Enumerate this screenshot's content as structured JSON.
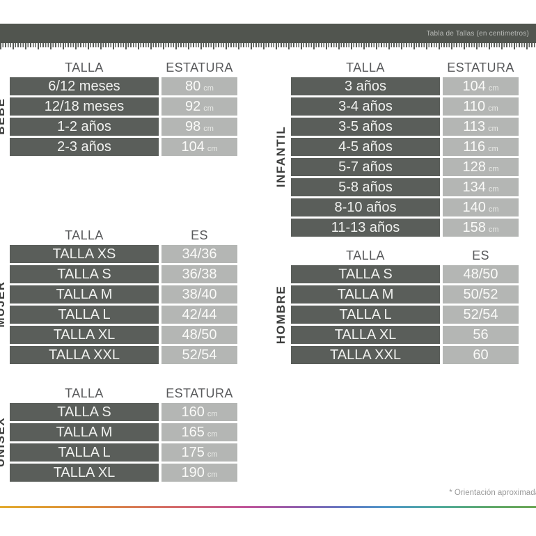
{
  "header": {
    "title": "Tabla de Tallas (en centimetros)"
  },
  "footer": {
    "note": "* Orientación aproximada"
  },
  "colors": {
    "header_bar": "#51554f",
    "dark_cell": "#5a5e5a",
    "light_cell": "#b4b6b4",
    "header_text": "#58595b",
    "cell_text": "#f0f1ef",
    "section_label": "#3d3e3d",
    "note_text": "#9a9a9a",
    "rainbow_gradient": [
      "#e2aa2e",
      "#dc8f3a",
      "#d4696b",
      "#c0549a",
      "#8f5fae",
      "#6478c2",
      "#4f96c8",
      "#4faa9b",
      "#6ba655"
    ]
  },
  "tables": {
    "bebe": {
      "section": "BEBÉ",
      "col_headers": [
        "TALLA",
        "ESTATURA"
      ],
      "unit": "cm",
      "rows": [
        {
          "size": "6/12 meses",
          "value": "80"
        },
        {
          "size": "12/18 meses",
          "value": "92"
        },
        {
          "size": "1-2 años",
          "value": "98"
        },
        {
          "size": "2-3 años",
          "value": "104"
        }
      ]
    },
    "infantil": {
      "section": "INFANTIL",
      "col_headers": [
        "TALLA",
        "ESTATURA"
      ],
      "unit": "cm",
      "rows": [
        {
          "size": "3 años",
          "value": "104"
        },
        {
          "size": "3-4 años",
          "value": "110"
        },
        {
          "size": "3-5 años",
          "value": "113"
        },
        {
          "size": "4-5 años",
          "value": "116"
        },
        {
          "size": "5-7 años",
          "value": "128"
        },
        {
          "size": "5-8 años",
          "value": "134"
        },
        {
          "size": "8-10 años",
          "value": "140"
        },
        {
          "size": "11-13 años",
          "value": "158"
        }
      ]
    },
    "mujer": {
      "section": "MUJER",
      "col_headers": [
        "TALLA",
        "ES"
      ],
      "rows": [
        {
          "size": "TALLA XS",
          "value": "34/36"
        },
        {
          "size": "TALLA S",
          "value": "36/38"
        },
        {
          "size": "TALLA M",
          "value": "38/40"
        },
        {
          "size": "TALLA L",
          "value": "42/44"
        },
        {
          "size": "TALLA XL",
          "value": "48/50"
        },
        {
          "size": "TALLA XXL",
          "value": "52/54"
        }
      ]
    },
    "hombre": {
      "section": "HOMBRE",
      "col_headers": [
        "TALLA",
        "ES"
      ],
      "rows": [
        {
          "size": "TALLA S",
          "value": "48/50"
        },
        {
          "size": "TALLA M",
          "value": "50/52"
        },
        {
          "size": "TALLA L",
          "value": "52/54"
        },
        {
          "size": "TALLA XL",
          "value": "56"
        },
        {
          "size": "TALLA XXL",
          "value": "60"
        }
      ]
    },
    "unisex": {
      "section": "UNISEX",
      "col_headers": [
        "TALLA",
        "ESTATURA"
      ],
      "unit": "cm",
      "rows": [
        {
          "size": "TALLA S",
          "value": "160"
        },
        {
          "size": "TALLA M",
          "value": "165"
        },
        {
          "size": "TALLA L",
          "value": "175"
        },
        {
          "size": "TALLA XL",
          "value": "190"
        }
      ]
    }
  }
}
